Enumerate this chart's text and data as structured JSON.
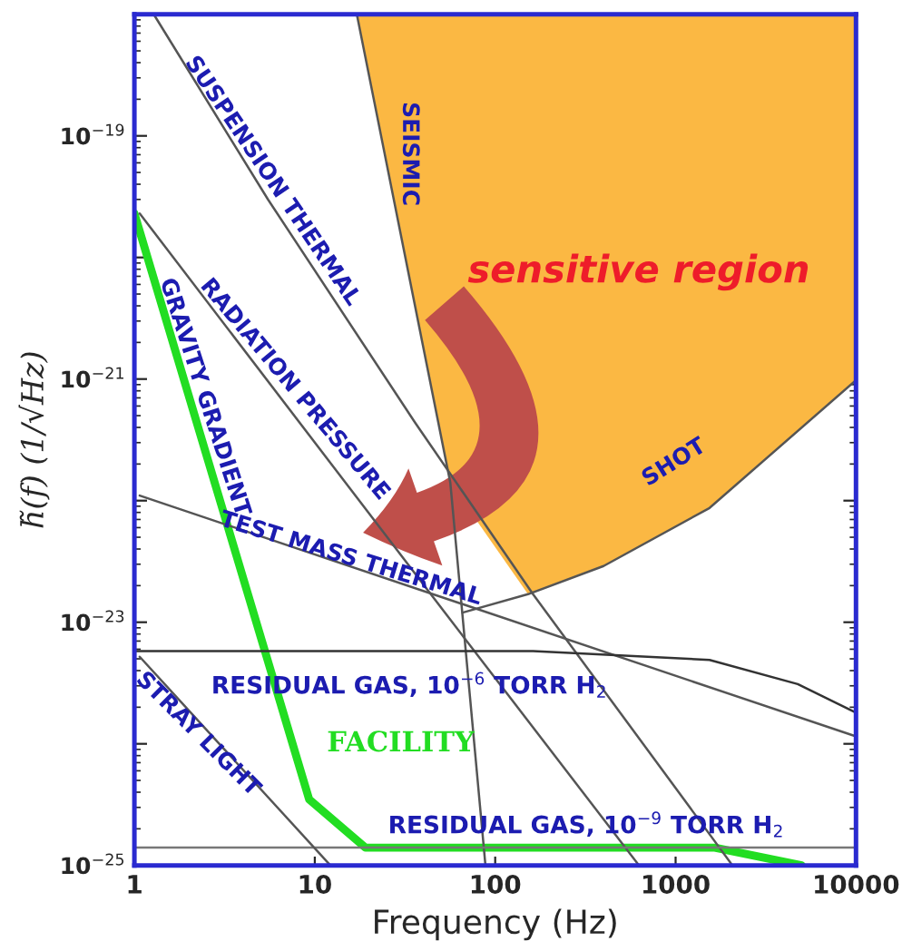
{
  "chart_data": {
    "type": "line",
    "xlabel": "Frequency (Hz)",
    "ylabel": "h̃(f) (1/√Hz)",
    "log": "xy",
    "grid": false,
    "xlim": [
      1,
      10000
    ],
    "ylim": [
      1e-25,
      1e-18
    ],
    "xticks": [
      1,
      10,
      100,
      1000,
      10000
    ],
    "yticks": [
      {
        "value": 1e-25,
        "label": "10$^{−25}$"
      },
      {
        "value": 1e-24,
        "label": null
      },
      {
        "value": 1e-23,
        "label": "10$^{−23}$"
      },
      {
        "value": 1e-22,
        "label": null
      },
      {
        "value": 1e-21,
        "label": "10$^{−21}$"
      },
      {
        "value": 1e-20,
        "label": null
      },
      {
        "value": 1e-19,
        "label": "10$^{−19}$"
      },
      {
        "value": 1e-18,
        "label": null
      }
    ],
    "series": [
      {
        "color": "#555555",
        "x": [
          17.1,
          56.4,
          88.3
        ],
        "values": [
          1e-18,
          1.4e-22,
          1e-25
        ]
      },
      {
        "color": "#555555",
        "x": [
          65.9,
          152,
          399,
          1542,
          10000
        ],
        "values": [
          1.2e-23,
          1.7e-23,
          2.9e-23,
          8.7e-23,
          9.8e-22
        ]
      },
      {
        "color": "#555555",
        "x": [
          1.28,
          5.5,
          35.9,
          162,
          2067
        ],
        "values": [
          1e-18,
          3e-20,
          4.4e-22,
          1.7e-23,
          1e-25
        ]
      },
      {
        "color": "#555555",
        "x": [
          1.07,
          52.6,
          627
        ],
        "values": [
          2.3e-20,
          1.2e-23,
          1e-25
        ]
      },
      {
        "color": "#555555",
        "x": [
          1.07,
          10000
        ],
        "values": [
          1.1e-22,
          1.15e-24
        ]
      },
      {
        "color": "#333333",
        "x": [
          1,
          162,
          1542,
          4755,
          10000
        ],
        "values": [
          5.8e-24,
          5.8e-24,
          4.9e-24,
          3.1e-24,
          1.8e-24
        ]
      },
      {
        "color": "#777777",
        "x": [
          1,
          10000
        ],
        "values": [
          1.4e-25,
          1.4e-25
        ]
      },
      {
        "color": "#555555",
        "x": [
          1.07,
          12.2
        ],
        "values": [
          5.2e-24,
          1e-25
        ]
      },
      {
        "color": "#22dd22",
        "x": [
          1,
          9.3,
          19.1,
          1650,
          5000
        ],
        "values": [
          2.3e-20,
          3.5e-25,
          1.4e-25,
          1.4e-25,
          1e-25
        ]
      }
    ],
    "annotations": [
      "SUSPENSION THERMAL",
      "RADIATION PRESSURE",
      "GRAVITY GRADIENT",
      "SEISMIC",
      "SHOT",
      "TEST MASS THERMAL",
      "RESIDUAL GAS, 10$^{−6}$ TORR H$_{2}$",
      "STRAY LIGHT",
      "FACILITY",
      "RESIDUAL GAS, 10$^{−9}$ TORR H$_{2}$",
      "sensitive region"
    ]
  }
}
